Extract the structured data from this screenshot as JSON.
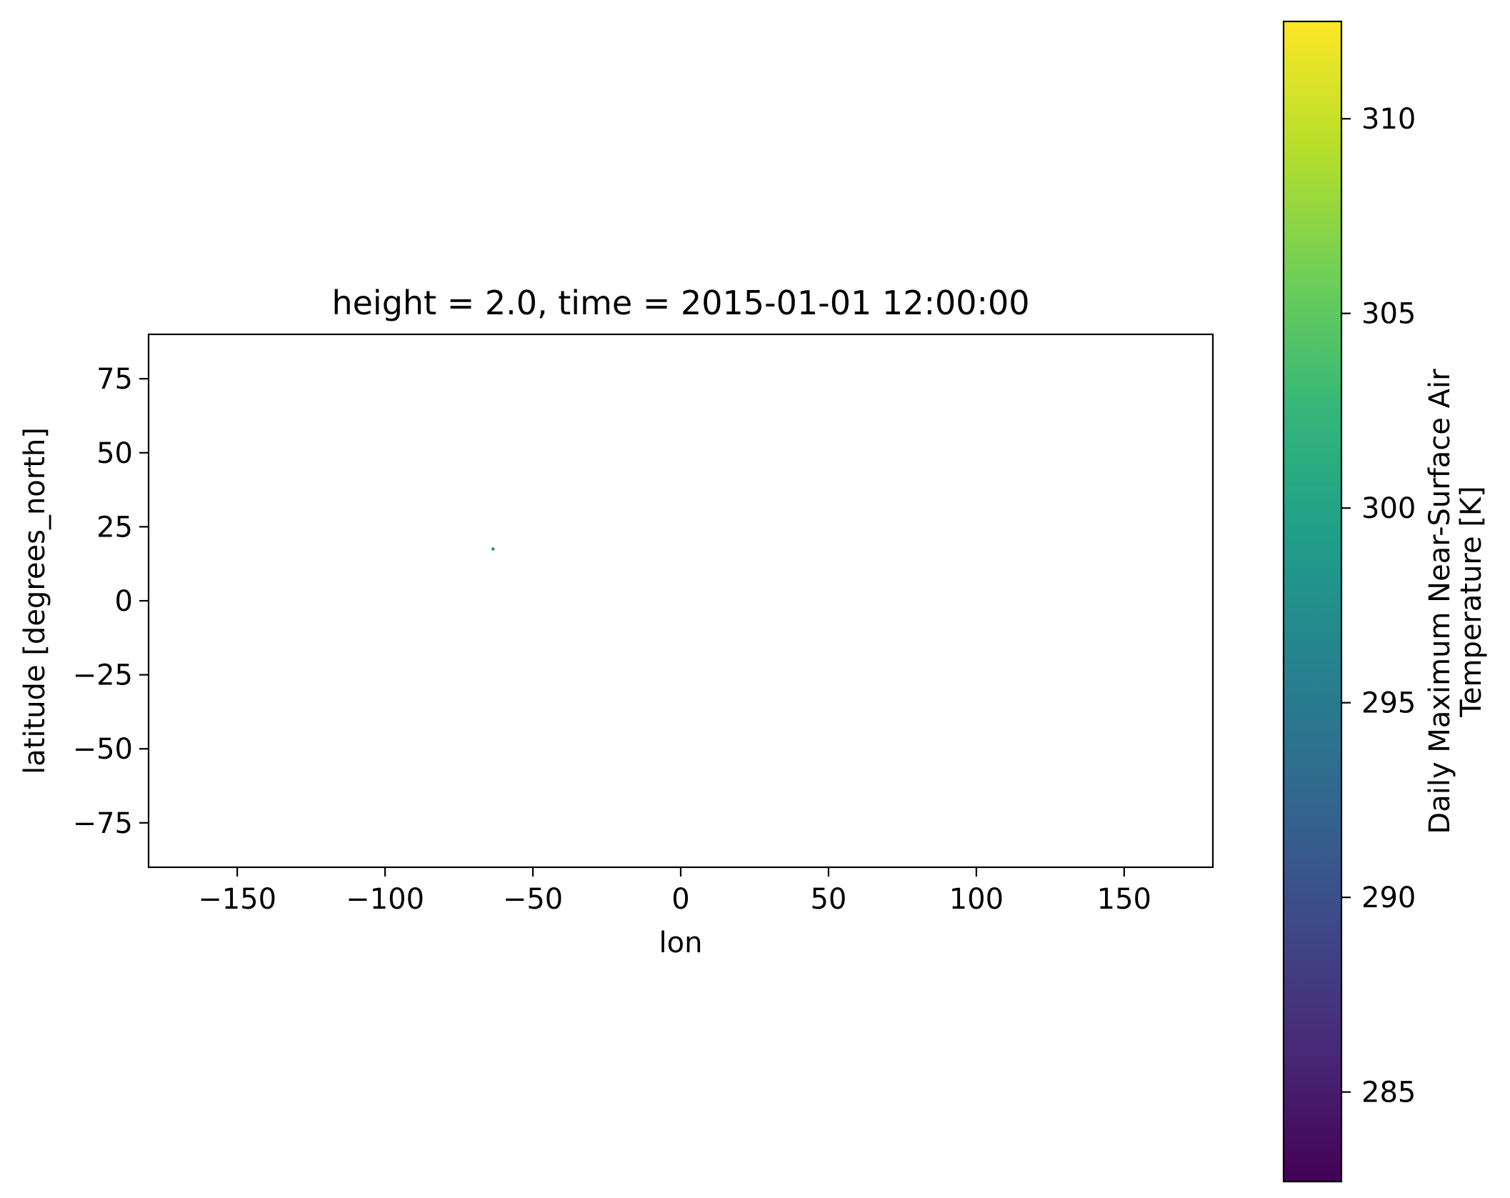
{
  "chart_data": {
    "type": "heatmap",
    "title": "height = 2.0, time = 2015-01-01 12:00:00",
    "xlabel": "lon",
    "ylabel": "latitude [degrees_north]",
    "xlim": [
      -180,
      180
    ],
    "ylim": [
      -90,
      90
    ],
    "x_ticks": [
      -150,
      -100,
      -50,
      0,
      50,
      100,
      150
    ],
    "x_tick_labels": [
      "−150",
      "−100",
      "−50",
      "0",
      "50",
      "100",
      "150"
    ],
    "y_ticks": [
      75,
      50,
      25,
      0,
      -25,
      -50,
      -75
    ],
    "y_tick_labels": [
      "75",
      "50",
      "25",
      "0",
      "−25",
      "−50",
      "−75"
    ],
    "grid": false,
    "cells": [
      {
        "lon": -63.5,
        "lat": 17.5,
        "value": 297.5
      }
    ],
    "colorbar": {
      "label_line1": "Daily Maximum Near-Surface Air",
      "label_line2": "Temperature [K]",
      "colormap": "viridis",
      "range": [
        282.7,
        312.5
      ],
      "ticks": [
        285,
        290,
        295,
        300,
        305,
        310
      ],
      "tick_labels": [
        "285",
        "290",
        "295",
        "300",
        "305",
        "310"
      ],
      "colors": [
        "#440154",
        "#482878",
        "#3e4989",
        "#31688e",
        "#26828e",
        "#1f9e89",
        "#35b779",
        "#6ece58",
        "#b5de2b",
        "#fde725"
      ]
    }
  }
}
